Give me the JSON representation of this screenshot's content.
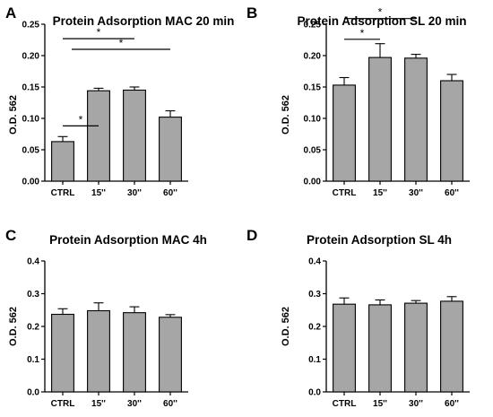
{
  "chart_data": [
    {
      "type": "bar",
      "letter": "A",
      "title": "Protein Adsorption MAC 20 min",
      "ylabel": "O.D. 562",
      "categories": [
        "CTRL",
        "15''",
        "30''",
        "60''"
      ],
      "values": [
        0.063,
        0.144,
        0.145,
        0.102
      ],
      "errors": [
        0.008,
        0.004,
        0.005,
        0.01
      ],
      "ylim": [
        0,
        0.25
      ],
      "yticks": [
        "0.00",
        "0.05",
        "0.10",
        "0.15",
        "0.20",
        "0.25"
      ],
      "significance": [
        {
          "from": 0,
          "to": 1,
          "label": "*",
          "level": 0.088
        },
        {
          "from": 0,
          "to": 2,
          "label": "*",
          "level": 0.227
        },
        {
          "from": 0.25,
          "to": 3,
          "label": "*",
          "level": 0.21
        }
      ]
    },
    {
      "type": "bar",
      "letter": "B",
      "title": "Protein Adsorption SL 20 min",
      "ylabel": "O.D. 562",
      "categories": [
        "CTRL",
        "15''",
        "30''",
        "60''"
      ],
      "values": [
        0.153,
        0.197,
        0.196,
        0.16
      ],
      "errors": [
        0.012,
        0.022,
        0.006,
        0.01
      ],
      "ylim": [
        0,
        0.25
      ],
      "yticks": [
        "0.00",
        "0.05",
        "0.10",
        "0.15",
        "0.20",
        "0.25"
      ],
      "significance": [
        {
          "from": 0,
          "to": 1,
          "label": "*",
          "level": 0.226
        },
        {
          "from": 0,
          "to": 2,
          "label": "*",
          "level": 0.259
        }
      ]
    },
    {
      "type": "bar",
      "letter": "C",
      "title": "Protein Adsorption MAC 4h",
      "ylabel": "O.D. 562",
      "categories": [
        "CTRL",
        "15''",
        "30''",
        "60''"
      ],
      "values": [
        0.237,
        0.248,
        0.242,
        0.228
      ],
      "errors": [
        0.017,
        0.024,
        0.018,
        0.008
      ],
      "ylim": [
        0,
        0.4
      ],
      "yticks": [
        "0.0",
        "0.1",
        "0.2",
        "0.3",
        "0.4"
      ],
      "significance": []
    },
    {
      "type": "bar",
      "letter": "D",
      "title": "Protein Adsorption SL 4h",
      "ylabel": "O.D. 562",
      "categories": [
        "CTRL",
        "15''",
        "30''",
        "60''"
      ],
      "values": [
        0.268,
        0.266,
        0.271,
        0.277
      ],
      "errors": [
        0.019,
        0.015,
        0.008,
        0.014
      ],
      "ylim": [
        0,
        0.4
      ],
      "yticks": [
        "0.0",
        "0.1",
        "0.2",
        "0.3",
        "0.4"
      ],
      "significance": []
    }
  ]
}
